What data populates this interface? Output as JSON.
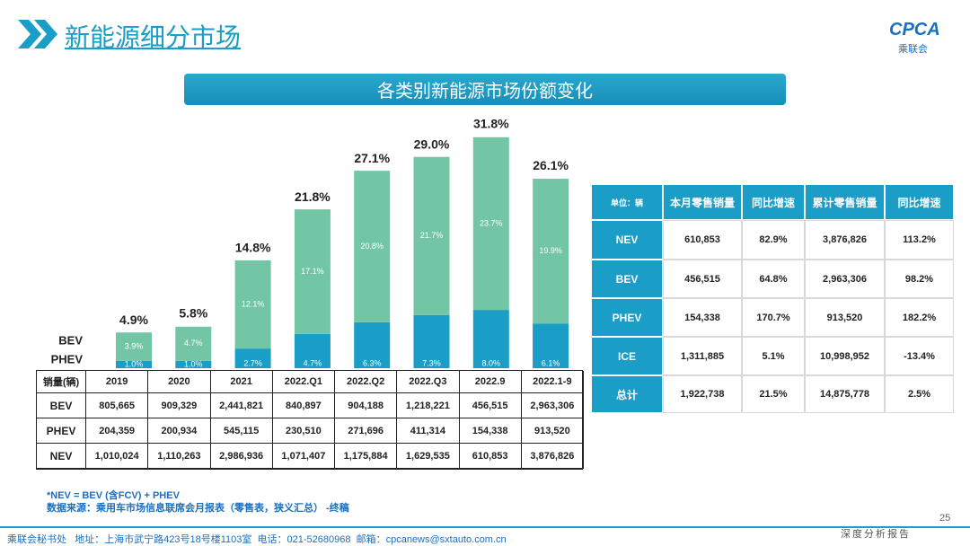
{
  "header": {
    "title": "新能源细分市场",
    "subtitle": "各类别新能源市场份额变化",
    "logo": "CPCA",
    "logo_sub": "乘联会"
  },
  "chart_data": {
    "type": "stacked_bar",
    "categories": [
      "2019",
      "2020",
      "2021",
      "2022.Q1",
      "2022.Q2",
      "2022.Q3",
      "2022.9",
      "2022.1-9"
    ],
    "series": [
      {
        "name": "PHEV",
        "color": "#1a9dc6",
        "values": [
          1.0,
          1.0,
          2.7,
          4.7,
          6.3,
          7.3,
          8.0,
          6.1
        ],
        "value_labels": [
          "1.0%",
          "1.0%",
          "2.7%",
          "4.7%",
          "6.3%",
          "7.3%",
          "8.0%",
          "6.1%"
        ]
      },
      {
        "name": "BEV",
        "color": "#72c6a6",
        "values": [
          3.9,
          4.7,
          12.1,
          17.1,
          20.8,
          21.7,
          23.7,
          19.9
        ],
        "value_labels": [
          "3.9%",
          "4.7%",
          "12.1%",
          "17.1%",
          "20.8%",
          "21.7%",
          "23.7%",
          "19.9%"
        ]
      }
    ],
    "totals": [
      4.9,
      5.8,
      14.8,
      21.8,
      27.1,
      29.0,
      31.8,
      26.1
    ],
    "total_labels": [
      "4.9%",
      "5.8%",
      "14.8%",
      "21.8%",
      "27.1%",
      "29.0%",
      "31.8%",
      "26.1%"
    ]
  },
  "sales_table": {
    "header": "销量(辆)",
    "rows": [
      [
        "BEV",
        "805,665",
        "909,329",
        "2,441,821",
        "840,897",
        "904,188",
        "1,218,221",
        "456,515",
        "2,963,306"
      ],
      [
        "PHEV",
        "204,359",
        "200,934",
        "545,115",
        "230,510",
        "271,696",
        "411,314",
        "154,338",
        "913,520"
      ],
      [
        "NEV",
        "1,010,024",
        "1,110,263",
        "2,986,936",
        "1,071,407",
        "1,175,884",
        "1,629,535",
        "610,853",
        "3,876,826"
      ]
    ]
  },
  "retail_table": {
    "header": [
      "单位：辆",
      "本月零售销量",
      "同比增速",
      "累计零售销量",
      "同比增速"
    ],
    "rows": [
      [
        "NEV",
        "610,853",
        "82.9%",
        "3,876,826",
        "113.2%"
      ],
      [
        "BEV",
        "456,515",
        "64.8%",
        "2,963,306",
        "98.2%"
      ],
      [
        "PHEV",
        "154,338",
        "170.7%",
        "913,520",
        "182.2%"
      ],
      [
        "ICE",
        "1,311,885",
        "5.1%",
        "10,998,952",
        "-13.4%"
      ],
      [
        "总计",
        "1,922,738",
        "21.5%",
        "14,875,778",
        "2.5%"
      ]
    ]
  },
  "notes": [
    "*NEV = BEV (含FCV) + PHEV",
    "数据来源：乘用车市场信息联席会月报表（零售表，狭义汇总） -终稿"
  ],
  "footer": {
    "page": "25",
    "address": "乘联会秘书处   地址：上海市武宁路423号18号楼1103室  电话：021-52680968  邮箱：cpcanews@sxtauto.com.cn",
    "report": "深度分析报告"
  }
}
